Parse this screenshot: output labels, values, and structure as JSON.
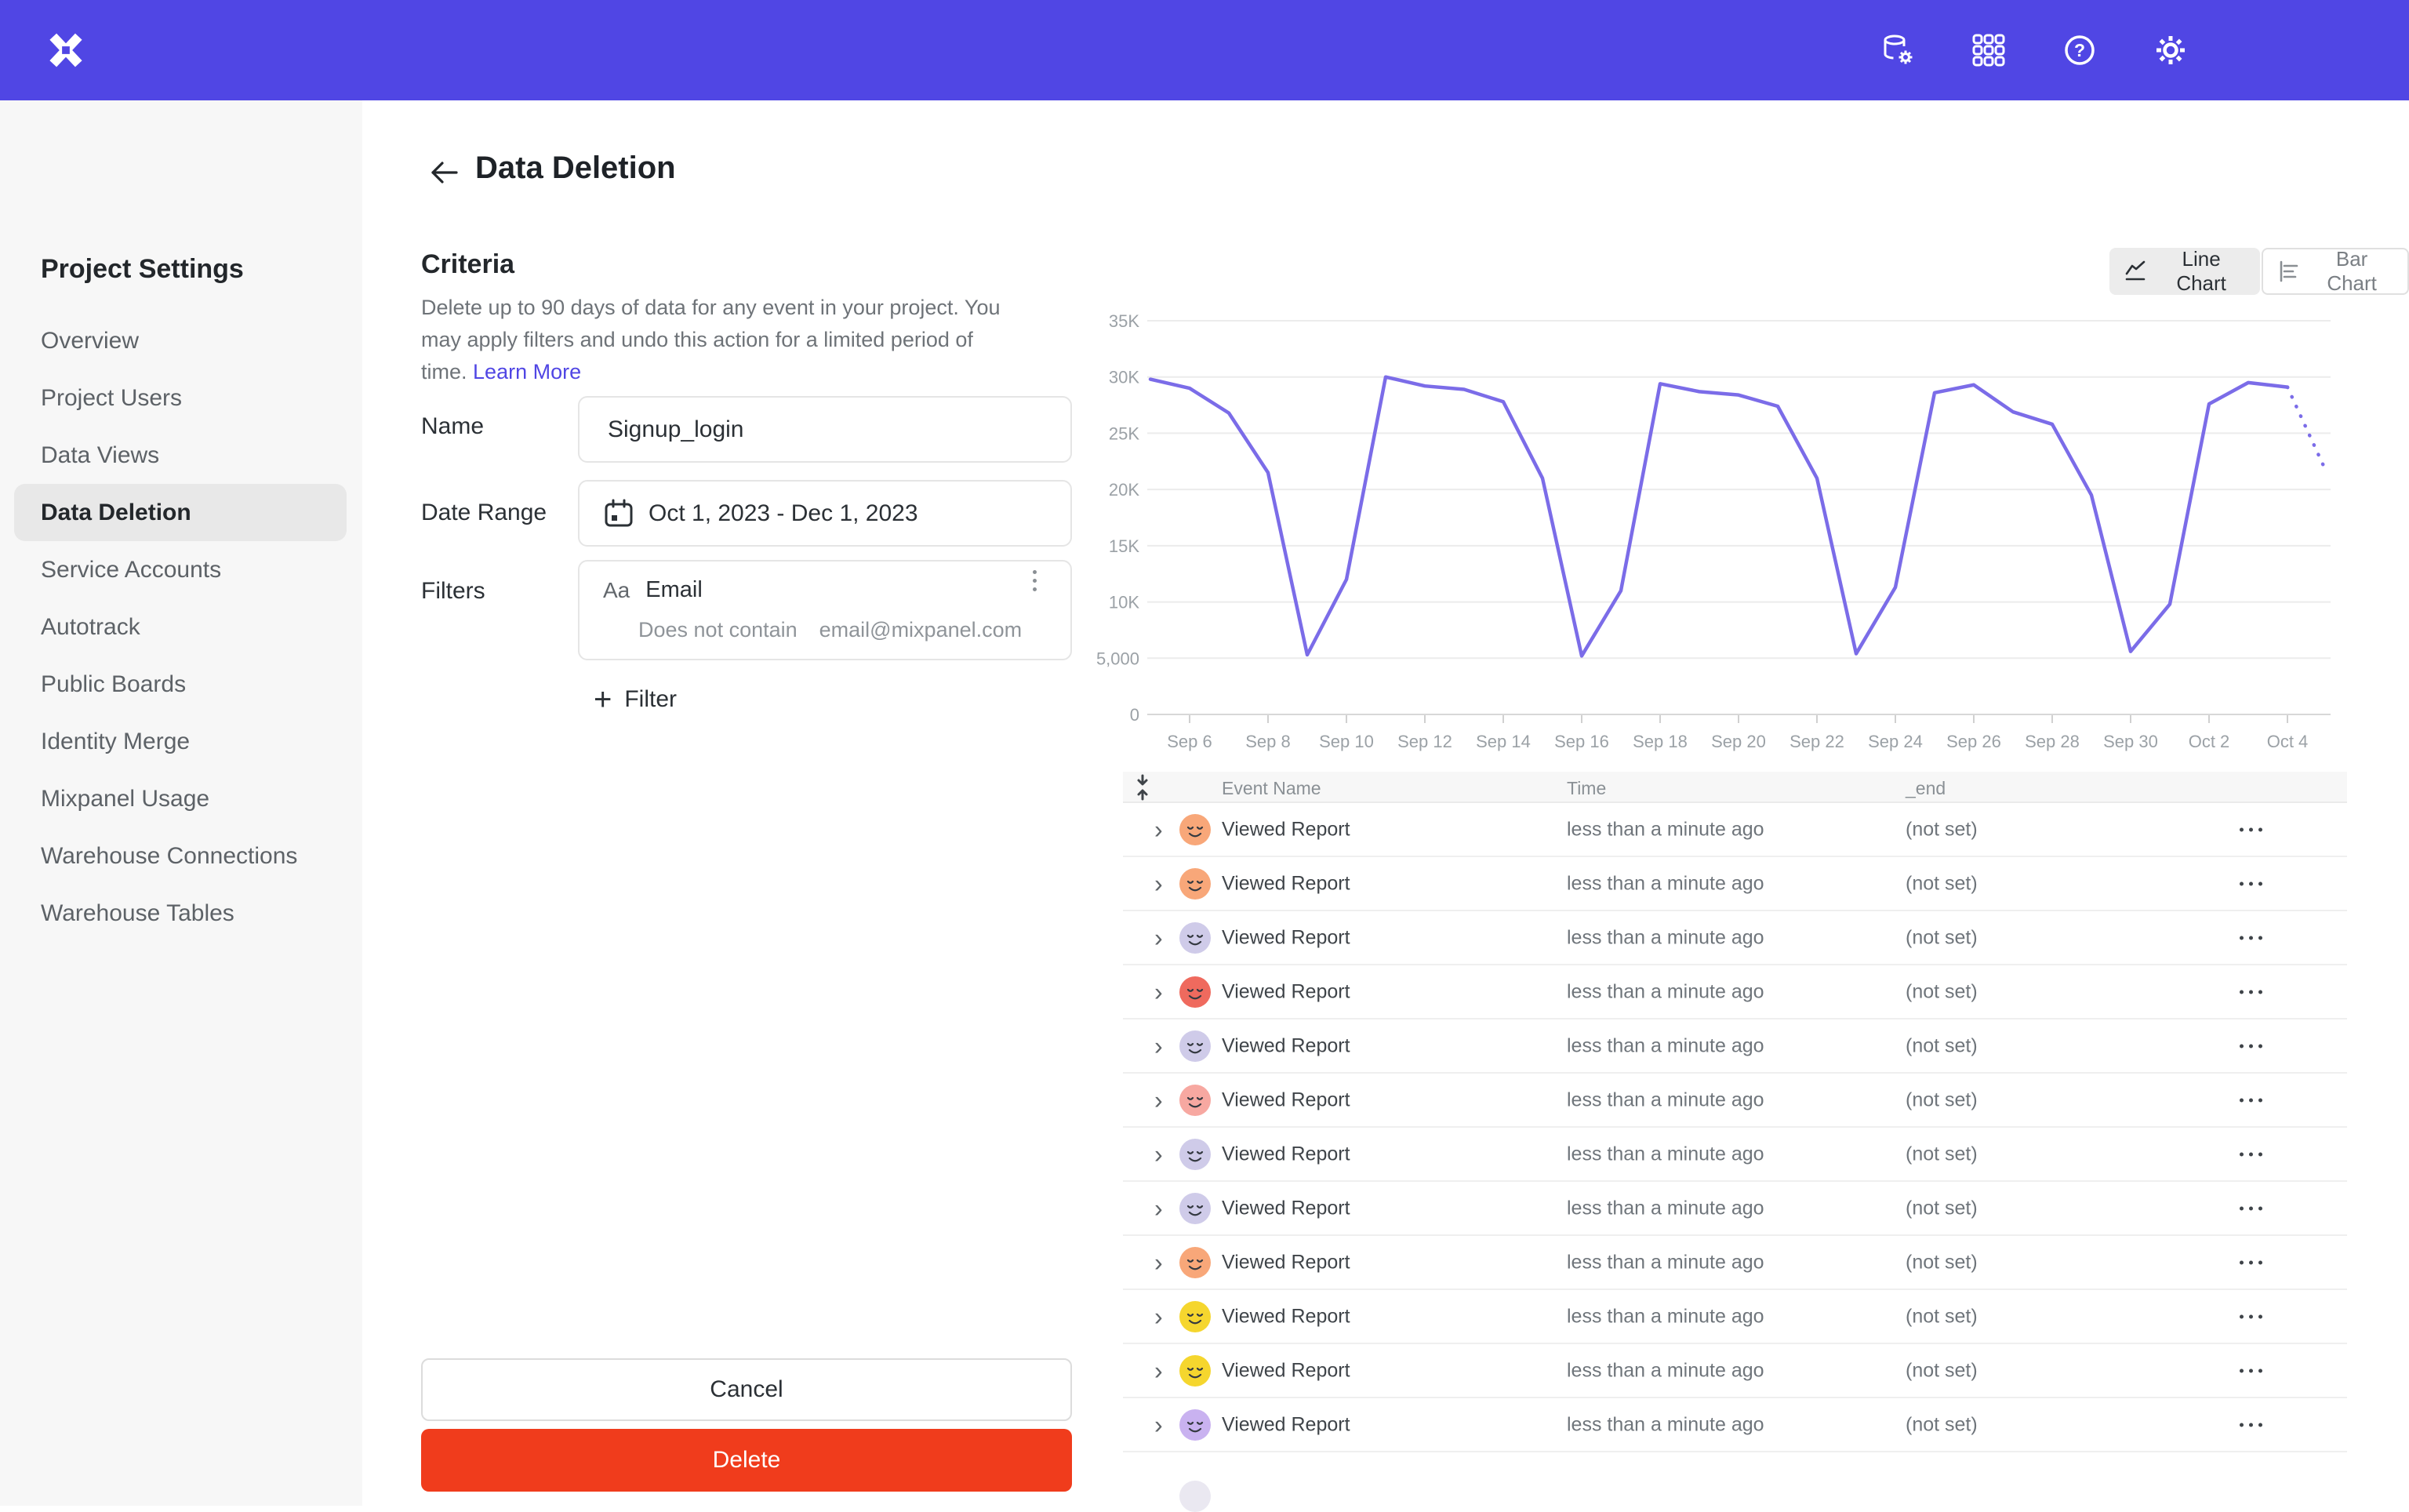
{
  "topbar": {
    "brand_color": "#5046e4",
    "icons": [
      "mixpanel-logo",
      "data-governance-icon",
      "apps-grid-icon",
      "help-icon",
      "settings-gear-icon"
    ]
  },
  "sidebar": {
    "title": "Project Settings",
    "items": [
      {
        "label": "Overview",
        "active": false
      },
      {
        "label": "Project Users",
        "active": false
      },
      {
        "label": "Data Views",
        "active": false
      },
      {
        "label": "Data Deletion",
        "active": true
      },
      {
        "label": "Service Accounts",
        "active": false
      },
      {
        "label": "Autotrack",
        "active": false
      },
      {
        "label": "Public Boards",
        "active": false
      },
      {
        "label": "Identity Merge",
        "active": false
      },
      {
        "label": "Mixpanel Usage",
        "active": false
      },
      {
        "label": "Warehouse Connections",
        "active": false
      },
      {
        "label": "Warehouse Tables",
        "active": false
      }
    ]
  },
  "header": {
    "title": "Data Deletion"
  },
  "criteria": {
    "title": "Criteria",
    "description": "Delete up to 90 days of data for any event in your project. You may apply filters and undo this action for a limited period of time.",
    "learn_more": "Learn More"
  },
  "form": {
    "name_label": "Name",
    "name_value": "Signup_login",
    "date_label": "Date Range",
    "date_value": "Oct 1, 2023 - Dec 1, 2023",
    "filters_label": "Filters",
    "filter_property_type": "Aa",
    "filter_property": "Email",
    "filter_operator": "Does not contain",
    "filter_value": "email@mixpanel.com",
    "add_filter_label": "Filter"
  },
  "actions": {
    "cancel": "Cancel",
    "delete": "Delete",
    "delete_color": "#f03c1c"
  },
  "chart_toggle": {
    "line": "Line Chart",
    "bar": "Bar Chart",
    "selected": "Line Chart"
  },
  "chart_data": {
    "type": "line",
    "line_color": "#7b6ce8",
    "x": [
      "Sep 5",
      "Sep 6",
      "Sep 7",
      "Sep 8",
      "Sep 9",
      "Sep 10",
      "Sep 11",
      "Sep 12",
      "Sep 13",
      "Sep 14",
      "Sep 15",
      "Sep 16",
      "Sep 17",
      "Sep 18",
      "Sep 19",
      "Sep 20",
      "Sep 21",
      "Sep 22",
      "Sep 23",
      "Sep 24",
      "Sep 25",
      "Sep 26",
      "Sep 27",
      "Sep 28",
      "Sep 29",
      "Sep 30",
      "Oct 1",
      "Oct 2",
      "Oct 3",
      "Oct 4",
      "Oct 5"
    ],
    "series": [
      {
        "name": "events",
        "values": [
          29800,
          29000,
          26800,
          21500,
          5300,
          12000,
          30000,
          29200,
          28900,
          27800,
          21000,
          5200,
          11000,
          29400,
          28700,
          28400,
          27400,
          21000,
          5400,
          11300,
          28600,
          29300,
          26900,
          25800,
          19500,
          5600,
          9800,
          27600,
          29500,
          29100,
          21500
        ],
        "dashed_from_index": 29
      }
    ],
    "x_tick_labels": [
      "Sep 6",
      "Sep 8",
      "Sep 10",
      "Sep 12",
      "Sep 14",
      "Sep 16",
      "Sep 18",
      "Sep 20",
      "Sep 22",
      "Sep 24",
      "Sep 26",
      "Sep 28",
      "Sep 30",
      "Oct 2",
      "Oct 4"
    ],
    "x_tick_indices": [
      1,
      3,
      5,
      7,
      9,
      11,
      13,
      15,
      17,
      19,
      21,
      23,
      25,
      27,
      29
    ],
    "y_ticks": {
      "values": [
        0,
        5000,
        10000,
        15000,
        20000,
        25000,
        30000,
        35000
      ],
      "labels": [
        "0",
        "5,000",
        "10K",
        "15K",
        "20K",
        "25K",
        "30K",
        "35K"
      ]
    },
    "ylim": [
      0,
      35000
    ],
    "grid": "horizontal",
    "title": "",
    "xlabel": "",
    "ylabel": ""
  },
  "table": {
    "columns": [
      "Event Name",
      "Time",
      "_end"
    ],
    "rows": [
      {
        "event": "Viewed Report",
        "time": "less than a minute ago",
        "end": "(not set)",
        "avatar_color": "#f8a779"
      },
      {
        "event": "Viewed Report",
        "time": "less than a minute ago",
        "end": "(not set)",
        "avatar_color": "#f8a779"
      },
      {
        "event": "Viewed Report",
        "time": "less than a minute ago",
        "end": "(not set)",
        "avatar_color": "#cfcbe9"
      },
      {
        "event": "Viewed Report",
        "time": "less than a minute ago",
        "end": "(not set)",
        "avatar_color": "#ef6a5e"
      },
      {
        "event": "Viewed Report",
        "time": "less than a minute ago",
        "end": "(not set)",
        "avatar_color": "#cfcbe9"
      },
      {
        "event": "Viewed Report",
        "time": "less than a minute ago",
        "end": "(not set)",
        "avatar_color": "#f7a8a1"
      },
      {
        "event": "Viewed Report",
        "time": "less than a minute ago",
        "end": "(not set)",
        "avatar_color": "#cfcbe9"
      },
      {
        "event": "Viewed Report",
        "time": "less than a minute ago",
        "end": "(not set)",
        "avatar_color": "#cfcbe9"
      },
      {
        "event": "Viewed Report",
        "time": "less than a minute ago",
        "end": "(not set)",
        "avatar_color": "#f8a779"
      },
      {
        "event": "Viewed Report",
        "time": "less than a minute ago",
        "end": "(not set)",
        "avatar_color": "#f5d62e"
      },
      {
        "event": "Viewed Report",
        "time": "less than a minute ago",
        "end": "(not set)",
        "avatar_color": "#f5d62e"
      },
      {
        "event": "Viewed Report",
        "time": "less than a minute ago",
        "end": "(not set)",
        "avatar_color": "#c9b2f0"
      }
    ]
  }
}
